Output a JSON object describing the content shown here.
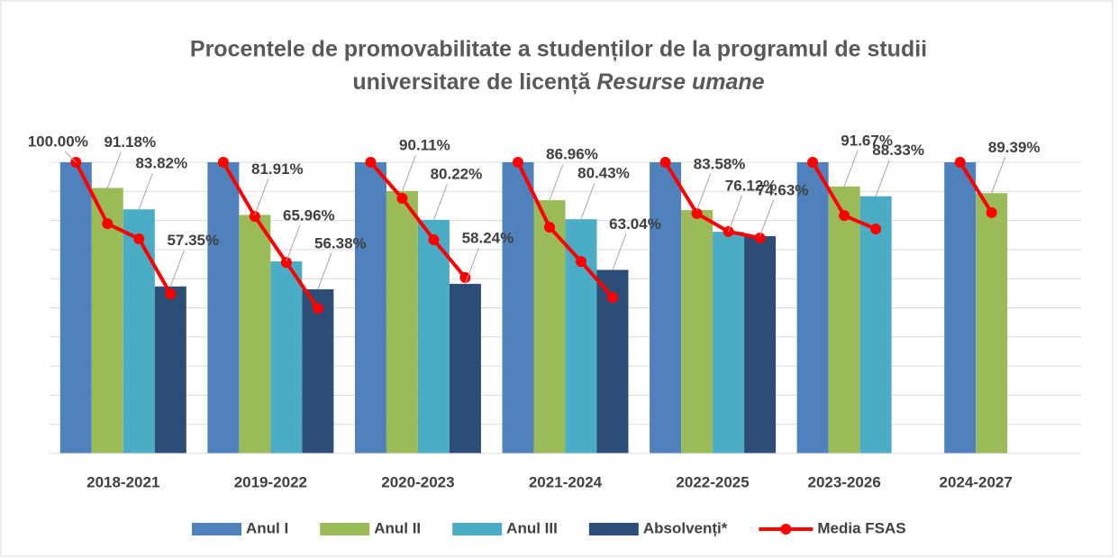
{
  "chart_data": {
    "type": "bar",
    "title": {
      "line1": "Procentele de promovabilitate a studenților de la programul de studii",
      "line2": "universitare de licență",
      "line2_italic": "Resurse umane"
    },
    "categories": [
      "2018-2021",
      "2019-2022",
      "2020-2023",
      "2021-2024",
      "2022-2025",
      "2023-2026",
      "2024-2027"
    ],
    "ylim": [
      0,
      100
    ],
    "yticks": [
      0,
      10,
      20,
      30,
      40,
      50,
      60,
      70,
      80,
      90,
      100
    ],
    "grid": true,
    "legend": "bottom",
    "series": [
      {
        "name": "Anul I",
        "color": "#4f81bd",
        "values": [
          100,
          100,
          100,
          100,
          100,
          100,
          100
        ],
        "value_labels": [
          "100.00%",
          null,
          null,
          null,
          null,
          null,
          null
        ]
      },
      {
        "name": "Anul II",
        "color": "#9bbb59",
        "values": [
          91.18,
          81.91,
          90.11,
          86.96,
          83.58,
          91.67,
          89.39
        ],
        "value_labels": [
          "91.18%",
          "81.91%",
          "90.11%",
          "86.96%",
          "83.58%",
          "91.67%",
          "89.39%"
        ]
      },
      {
        "name": "Anul III",
        "color": "#4bacc6",
        "values": [
          83.82,
          65.96,
          80.22,
          80.43,
          76.12,
          88.33,
          null
        ],
        "value_labels": [
          "83.82%",
          "65.96%",
          "80.22%",
          "80.43%",
          "76.12%",
          "88.33%",
          null
        ]
      },
      {
        "name": "Absolvenți*",
        "color": "#2c4d75",
        "values": [
          57.35,
          56.38,
          58.24,
          63.04,
          74.63,
          null,
          null
        ],
        "value_labels": [
          "57.35%",
          "56.38%",
          "58.24%",
          "63.04%",
          "74.63%",
          null,
          null
        ]
      }
    ],
    "line_series": {
      "name": "Media FSAS",
      "color": "#ff0000",
      "values": [
        [
          100,
          78.9,
          73.7,
          54.8
        ],
        [
          100,
          81.4,
          65.6,
          49.8
        ],
        [
          100,
          87.6,
          73.4,
          60.4
        ],
        [
          100,
          77.7,
          65.9,
          53.6
        ],
        [
          100,
          82.4,
          76.2,
          74.0
        ],
        [
          100,
          81.7,
          77.1,
          null
        ],
        [
          100,
          82.7,
          null,
          null
        ]
      ]
    }
  }
}
